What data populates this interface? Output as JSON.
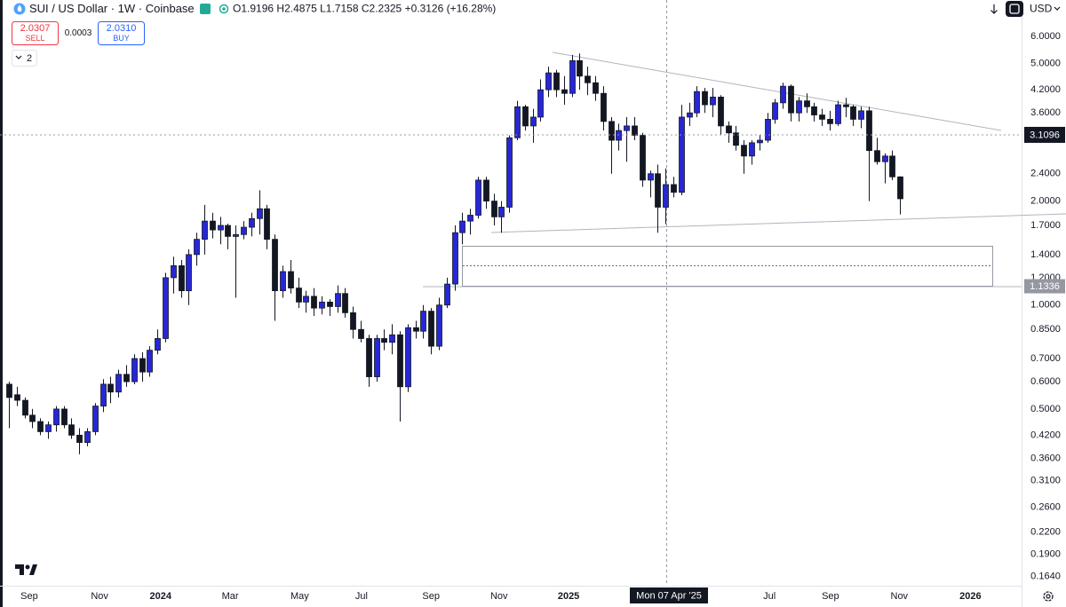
{
  "header": {
    "symbol": "SUI / US Dollar · 1W · Coinbase",
    "ohlc_letters": [
      "O",
      "H",
      "L",
      "C"
    ],
    "change": "+0.3126 (+16.28%)",
    "collapse_count": "2",
    "currency": "USD"
  },
  "trade": {
    "sell_price": "2.0307",
    "sell_label": "SELL",
    "spread": "0.0003",
    "buy_price": "2.0310",
    "buy_label": "BUY"
  },
  "chart_data": {
    "type": "candlestick",
    "log_scale": true,
    "grid": false,
    "up_color": "#2727d6",
    "down_color": "#131722",
    "wick_color": "#131722",
    "xlim": [
      -1.14,
      129.55
    ],
    "ylim": [
      0.154,
      7.64
    ],
    "xticks": [
      {
        "value": 2.6,
        "label": "Sep"
      },
      {
        "value": 11.6,
        "label": "Nov"
      },
      {
        "value": 19.4,
        "label": "2024"
      },
      {
        "value": 28.3,
        "label": "Mar"
      },
      {
        "value": 37.2,
        "label": "May"
      },
      {
        "value": 45.1,
        "label": "Jul"
      },
      {
        "value": 54,
        "label": "Sep"
      },
      {
        "value": 62.7,
        "label": "Nov"
      },
      {
        "value": 71.6,
        "label": "2025"
      },
      {
        "value": 97.3,
        "label": "Jul"
      },
      {
        "value": 105.1,
        "label": "Sep"
      },
      {
        "value": 113.9,
        "label": "Nov"
      },
      {
        "value": 123,
        "label": "2026"
      }
    ],
    "yticks": [
      {
        "value": 6,
        "label": "6.0000"
      },
      {
        "value": 5,
        "label": "5.0000"
      },
      {
        "value": 4.2,
        "label": "4.2000"
      },
      {
        "value": 3.6,
        "label": "3.6000"
      },
      {
        "value": 2.4,
        "label": "2.4000"
      },
      {
        "value": 2,
        "label": "2.0000"
      },
      {
        "value": 1.7,
        "label": "1.7000"
      },
      {
        "value": 1.4,
        "label": "1.4000"
      },
      {
        "value": 1.2,
        "label": "1.2000"
      },
      {
        "value": 1,
        "label": "1.0000"
      },
      {
        "value": 0.85,
        "label": "0.8500"
      },
      {
        "value": 0.7,
        "label": "0.7000"
      },
      {
        "value": 0.6,
        "label": "0.6000"
      },
      {
        "value": 0.5,
        "label": "0.5000"
      },
      {
        "value": 0.42,
        "label": "0.4200"
      },
      {
        "value": 0.36,
        "label": "0.3600"
      },
      {
        "value": 0.31,
        "label": "0.3100"
      },
      {
        "value": 0.26,
        "label": "0.2600"
      },
      {
        "value": 0.22,
        "label": "0.2200"
      },
      {
        "value": 0.19,
        "label": "0.1900"
      },
      {
        "value": 0.164,
        "label": "0.1640"
      }
    ],
    "crosshair_price": 3.1096,
    "crosshair_date": "Mon 07 Apr '25",
    "hline_price": 1.1336,
    "open": [
      0.59,
      0.55,
      0.53,
      0.48,
      0.46,
      0.43,
      0.45,
      0.5,
      0.45,
      0.42,
      0.4,
      0.43,
      0.51,
      0.59,
      0.56,
      0.63,
      0.6,
      0.7,
      0.64,
      0.74,
      0.8,
      1.2,
      1.3,
      1.1,
      1.4,
      1.55,
      1.75,
      1.65,
      1.7,
      1.58,
      1.6,
      1.68,
      1.78,
      1.9,
      1.55,
      1.1,
      1.25,
      1.12,
      1.02,
      1.06,
      0.98,
      1.02,
      0.99,
      1.08,
      0.95,
      0.85,
      0.8,
      0.62,
      0.8,
      0.78,
      0.82,
      0.58,
      0.86,
      0.84,
      0.96,
      0.76,
      1,
      1.15,
      1.62,
      1.75,
      1.82,
      2.3,
      2,
      1.8,
      1.92,
      3.05,
      3.75,
      3.3,
      3.5,
      4.2,
      4.7,
      4.2,
      4.1,
      5.1,
      4.6,
      4.4,
      4.1,
      3.4,
      3,
      3.2,
      3.3,
      3.1,
      2.3,
      2.4,
      1.9196,
      2.2325,
      2.12,
      3.5,
      3.6,
      4.15,
      3.8,
      4,
      3.3,
      3.15,
      2.9,
      2.7,
      2.95,
      3,
      3.45,
      3.85,
      4.3,
      3.6,
      3.9,
      3.75,
      3.55,
      3.45,
      3.35,
      3.8,
      3.75,
      3.45,
      3.65,
      2.8,
      2.6,
      2.7,
      2.35
    ],
    "high": [
      0.6,
      0.58,
      0.54,
      0.5,
      0.47,
      0.46,
      0.51,
      0.51,
      0.47,
      0.44,
      0.44,
      0.52,
      0.61,
      0.62,
      0.65,
      0.67,
      0.72,
      0.73,
      0.76,
      0.85,
      1.24,
      1.38,
      1.35,
      1.45,
      1.62,
      1.95,
      1.85,
      1.8,
      1.72,
      1.7,
      1.75,
      1.85,
      2.15,
      1.95,
      1.6,
      1.3,
      1.35,
      1.2,
      1.1,
      1.12,
      1.06,
      1.04,
      1.14,
      1.12,
      0.99,
      0.9,
      0.82,
      0.82,
      0.85,
      0.88,
      0.84,
      0.88,
      0.9,
      1,
      0.98,
      1.05,
      1.2,
      1.7,
      1.85,
      1.9,
      2.35,
      2.35,
      2.1,
      2,
      3.1,
      3.9,
      3.8,
      3.7,
      4.5,
      4.9,
      4.8,
      4.6,
      5.3,
      5.35,
      4.9,
      4.6,
      4.3,
      3.5,
      3.35,
      3.5,
      3.5,
      3.15,
      2.45,
      2.55,
      2.4875,
      2.35,
      3.8,
      3.85,
      4.3,
      4.25,
      4.25,
      4.05,
      3.4,
      3.3,
      3,
      3,
      3.1,
      3.6,
      3.95,
      4.4,
      4.35,
      4,
      4.1,
      3.85,
      3.7,
      3.65,
      3.9,
      3.98,
      3.8,
      3.75,
      3.75,
      3.05,
      2.75,
      2.8,
      2.36
    ],
    "low": [
      0.44,
      0.51,
      0.47,
      0.44,
      0.42,
      0.41,
      0.43,
      0.44,
      0.41,
      0.37,
      0.39,
      0.42,
      0.49,
      0.52,
      0.54,
      0.58,
      0.59,
      0.6,
      0.62,
      0.72,
      0.78,
      1.08,
      1.05,
      1,
      1.3,
      1.4,
      1.56,
      1.5,
      1.45,
      1.05,
      1.55,
      1.58,
      1.6,
      1.45,
      0.9,
      1.05,
      1.08,
      0.98,
      0.95,
      0.93,
      0.94,
      0.93,
      0.95,
      0.92,
      0.8,
      0.78,
      0.58,
      0.6,
      0.74,
      0.72,
      0.46,
      0.56,
      0.8,
      0.8,
      0.72,
      0.74,
      0.98,
      1.1,
      1.5,
      1.6,
      1.78,
      1.9,
      1.7,
      1.62,
      1.85,
      3,
      3.2,
      2.95,
      3.4,
      4,
      4,
      3.8,
      4,
      4.2,
      4.05,
      3.9,
      3.2,
      2.4,
      2.8,
      2.6,
      3,
      2.2,
      2.05,
      1.62,
      1.7158,
      2.05,
      2.08,
      3.3,
      3.5,
      3.6,
      3.5,
      3.1,
      2.95,
      2.8,
      2.4,
      2.55,
      2.8,
      2.95,
      3.35,
      3.7,
      3.4,
      3.4,
      3.6,
      3.4,
      3.3,
      3.2,
      3.3,
      3.5,
      3.3,
      3.25,
      2,
      2.55,
      2.25,
      2.3,
      1.83
    ],
    "close": [
      0.54,
      0.53,
      0.48,
      0.46,
      0.43,
      0.45,
      0.5,
      0.45,
      0.42,
      0.4,
      0.43,
      0.51,
      0.59,
      0.56,
      0.63,
      0.6,
      0.7,
      0.64,
      0.74,
      0.8,
      1.2,
      1.3,
      1.1,
      1.4,
      1.55,
      1.75,
      1.65,
      1.7,
      1.58,
      1.6,
      1.68,
      1.78,
      1.9,
      1.55,
      1.1,
      1.25,
      1.12,
      1.02,
      1.06,
      0.98,
      1.02,
      0.99,
      1.08,
      0.95,
      0.85,
      0.8,
      0.62,
      0.8,
      0.78,
      0.82,
      0.58,
      0.86,
      0.84,
      0.96,
      0.76,
      1,
      1.15,
      1.62,
      1.75,
      1.82,
      2.3,
      2,
      1.8,
      1.92,
      3.05,
      3.75,
      3.3,
      3.5,
      4.2,
      4.7,
      4.2,
      4.1,
      5.1,
      4.6,
      4.4,
      4.1,
      3.4,
      3,
      3.2,
      3.3,
      3.1,
      2.3,
      2.4,
      1.92,
      2.2325,
      2.12,
      3.5,
      3.6,
      4.15,
      3.8,
      4,
      3.3,
      3.15,
      2.9,
      2.7,
      2.95,
      3,
      3.45,
      3.85,
      4.3,
      3.6,
      3.9,
      3.75,
      3.55,
      3.45,
      3.35,
      3.8,
      3.75,
      3.45,
      3.65,
      2.8,
      2.6,
      2.7,
      2.35,
      2.031
    ]
  }
}
